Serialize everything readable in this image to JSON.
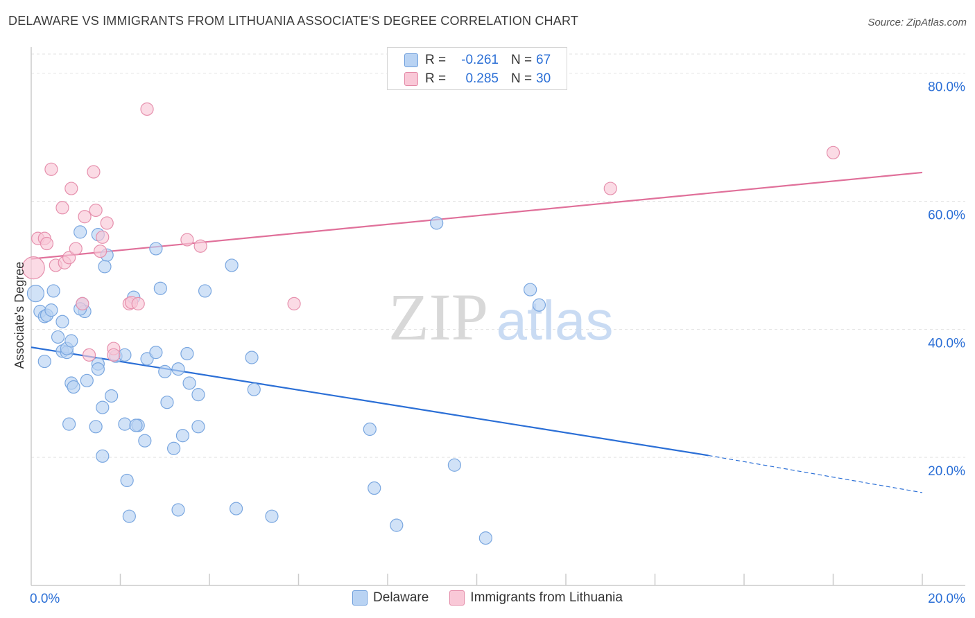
{
  "title": "DELAWARE VS IMMIGRANTS FROM LITHUANIA ASSOCIATE'S DEGREE CORRELATION CHART",
  "source": "Source: ZipAtlas.com",
  "colors": {
    "blue": "#2b6fd6",
    "blue_fill": "#b9d3f3",
    "pink": "#e0709a",
    "pink_fill": "#f9c8d7",
    "grid": "#e2e2e2"
  },
  "stats": [
    {
      "r_label": "R =",
      "r": "-0.261",
      "n_label": "N =",
      "n": "67"
    },
    {
      "r_label": "R =",
      "r": "0.285",
      "n_label": "N =",
      "n": "30"
    }
  ],
  "chart_data": {
    "type": "scatter",
    "xlabel": "",
    "ylabel": "Associate's Degree",
    "xlim": [
      0,
      20
    ],
    "ylim": [
      0,
      83
    ],
    "x_tick_labels": [
      {
        "value": 0,
        "label": "0.0%"
      },
      {
        "value": 20,
        "label": "20.0%"
      }
    ],
    "y_tick_labels": [
      {
        "value": 20,
        "label": "20.0%"
      },
      {
        "value": 40,
        "label": "40.0%"
      },
      {
        "value": 60,
        "label": "60.0%"
      },
      {
        "value": 80,
        "label": "80.0%"
      }
    ],
    "watermark": {
      "zip": "ZIP",
      "atlas": "atlas"
    },
    "series": [
      {
        "name": "Delaware",
        "color": "#2b6fd6",
        "trend": {
          "x": [
            0,
            15.2
          ],
          "y": [
            37.2,
            20.3
          ],
          "dashed_to": [
            20,
            14.5
          ]
        },
        "points": [
          [
            0.1,
            45.6
          ],
          [
            0.2,
            42.8
          ],
          [
            0.3,
            42.0
          ],
          [
            0.35,
            42.2
          ],
          [
            0.5,
            46.0
          ],
          [
            0.7,
            41.2
          ],
          [
            0.6,
            38.8
          ],
          [
            0.7,
            36.6
          ],
          [
            0.8,
            36.4
          ],
          [
            0.8,
            37.0
          ],
          [
            0.9,
            38.2
          ],
          [
            0.3,
            35.0
          ],
          [
            1.1,
            55.2
          ],
          [
            1.15,
            44.0
          ],
          [
            1.2,
            42.8
          ],
          [
            1.5,
            54.8
          ],
          [
            1.7,
            51.6
          ],
          [
            1.65,
            49.8
          ],
          [
            1.25,
            32.0
          ],
          [
            0.9,
            31.6
          ],
          [
            0.95,
            31.0
          ],
          [
            1.5,
            34.6
          ],
          [
            1.5,
            33.8
          ],
          [
            1.9,
            35.8
          ],
          [
            1.8,
            29.6
          ],
          [
            1.6,
            27.8
          ],
          [
            0.85,
            25.2
          ],
          [
            1.45,
            24.8
          ],
          [
            2.1,
            25.2
          ],
          [
            2.4,
            25.0
          ],
          [
            1.6,
            20.2
          ],
          [
            2.15,
            16.4
          ],
          [
            2.2,
            10.8
          ],
          [
            2.55,
            22.6
          ],
          [
            2.3,
            45.0
          ],
          [
            2.6,
            35.4
          ],
          [
            2.8,
            52.6
          ],
          [
            2.9,
            46.4
          ],
          [
            2.8,
            36.4
          ],
          [
            3.0,
            33.4
          ],
          [
            3.05,
            28.6
          ],
          [
            3.2,
            21.4
          ],
          [
            3.3,
            33.8
          ],
          [
            3.4,
            23.4
          ],
          [
            3.5,
            36.2
          ],
          [
            3.55,
            31.6
          ],
          [
            3.75,
            29.8
          ],
          [
            3.3,
            11.8
          ],
          [
            3.75,
            24.8
          ],
          [
            3.9,
            46.0
          ],
          [
            4.5,
            50.0
          ],
          [
            4.6,
            12.0
          ],
          [
            4.95,
            35.6
          ],
          [
            5.0,
            30.6
          ],
          [
            5.4,
            10.8
          ],
          [
            7.6,
            24.4
          ],
          [
            7.7,
            15.2
          ],
          [
            8.2,
            9.4
          ],
          [
            9.1,
            56.6
          ],
          [
            9.5,
            18.8
          ],
          [
            10.2,
            7.4
          ],
          [
            11.2,
            46.2
          ],
          [
            11.4,
            43.8
          ],
          [
            1.1,
            43.2
          ],
          [
            2.35,
            25.0
          ],
          [
            0.45,
            43.0
          ],
          [
            2.1,
            36.0
          ]
        ]
      },
      {
        "name": "Immigrants from Lithuania",
        "color": "#e0709a",
        "trend": {
          "x": [
            0,
            20
          ],
          "y": [
            51.0,
            64.5
          ]
        },
        "points": [
          [
            0.15,
            54.2
          ],
          [
            0.3,
            54.2
          ],
          [
            0.35,
            53.4
          ],
          [
            0.7,
            59.0
          ],
          [
            0.45,
            65.0
          ],
          [
            0.55,
            50.0
          ],
          [
            0.75,
            50.4
          ],
          [
            0.85,
            51.2
          ],
          [
            0.9,
            62.0
          ],
          [
            1.0,
            52.6
          ],
          [
            1.15,
            44.0
          ],
          [
            1.2,
            57.6
          ],
          [
            1.3,
            36.0
          ],
          [
            1.4,
            64.6
          ],
          [
            1.45,
            58.6
          ],
          [
            1.55,
            52.2
          ],
          [
            1.6,
            54.4
          ],
          [
            1.7,
            56.6
          ],
          [
            1.85,
            37.0
          ],
          [
            1.85,
            36.0
          ],
          [
            2.2,
            44.0
          ],
          [
            2.25,
            44.2
          ],
          [
            2.4,
            44.0
          ],
          [
            2.6,
            74.4
          ],
          [
            3.5,
            54.0
          ],
          [
            3.8,
            53.0
          ],
          [
            5.9,
            44.0
          ],
          [
            13.0,
            62.0
          ],
          [
            18.0,
            67.6
          ],
          [
            0.05,
            49.6
          ]
        ]
      }
    ]
  },
  "legend": [
    "Delaware",
    "Immigrants from Lithuania"
  ]
}
